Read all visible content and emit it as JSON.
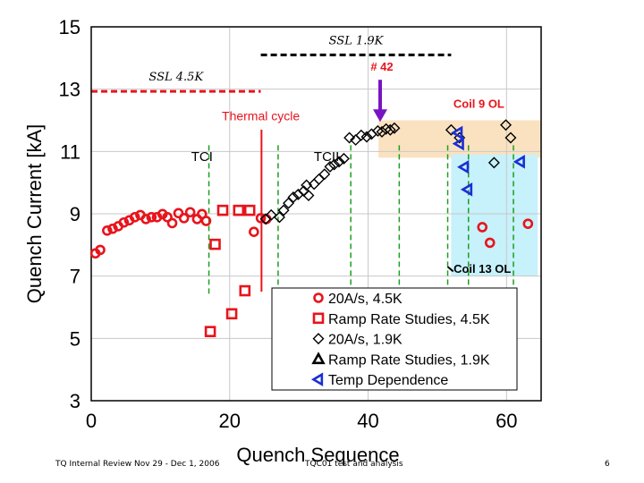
{
  "chart_data": {
    "type": "scatter",
    "xlabel": "Quench Sequence",
    "ylabel": "Quench Current [kA]",
    "xlim": [
      0,
      65
    ],
    "ylim": [
      3,
      15
    ],
    "xticks": [
      0,
      20,
      40,
      60
    ],
    "yticks": [
      3,
      5,
      7,
      9,
      11,
      13,
      15
    ],
    "reference_lines": [
      {
        "label": "SSL 1.9K",
        "y": 14.1,
        "x_range": [
          24.5,
          52
        ],
        "color": "#000000"
      },
      {
        "label": "SSL 4.5K",
        "y": 12.93,
        "x_range": [
          0,
          24.5
        ],
        "color": "#e8141c"
      }
    ],
    "regions": [
      {
        "label": "Coil 9 OL",
        "x_range": [
          41.5,
          65
        ],
        "y_range": [
          10.8,
          12.0
        ],
        "color": "#fae2c0"
      },
      {
        "label": "Coil 13 OL",
        "x_range": [
          52,
          64.5
        ],
        "y_range": [
          7.0,
          10.9
        ],
        "color": "#c7f1fb"
      }
    ],
    "annotations": [
      {
        "text": "# 42",
        "x": 42,
        "y": 13.6,
        "color": "#e8141c"
      },
      {
        "text": "Thermal cycle",
        "x": 24.5,
        "y": 12.0,
        "color": "#e8141c"
      },
      {
        "text": "TCI",
        "x": 16,
        "y": 10.7,
        "color": "#000000"
      },
      {
        "text": "TCII",
        "x": 34,
        "y": 10.7,
        "color": "#000000"
      },
      {
        "text": "Coil 9 OL",
        "x": 56,
        "y": 12.4,
        "color": "#e8141c"
      },
      {
        "text": "Coil 13 OL",
        "x": 56.5,
        "y": 7.1,
        "color": "#000000"
      }
    ],
    "thermal_cycle_x": 24.6,
    "dashed_vlines": [
      17,
      27,
      37.5,
      44.5,
      51.5,
      54.5,
      61
    ],
    "series": [
      {
        "name": "20A/s, 4.5K",
        "marker": "circle",
        "color": "#e8141c",
        "points": [
          [
            0.6,
            7.73
          ],
          [
            1.3,
            7.84
          ],
          [
            2.3,
            8.46
          ],
          [
            3.1,
            8.52
          ],
          [
            3.9,
            8.6
          ],
          [
            4.7,
            8.72
          ],
          [
            5.5,
            8.79
          ],
          [
            6.3,
            8.89
          ],
          [
            7.1,
            8.96
          ],
          [
            7.9,
            8.83
          ],
          [
            8.7,
            8.89
          ],
          [
            9.5,
            8.89
          ],
          [
            10.3,
            8.99
          ],
          [
            11.0,
            8.89
          ],
          [
            11.7,
            8.7
          ],
          [
            12.6,
            9.02
          ],
          [
            13.4,
            8.86
          ],
          [
            14.3,
            9.05
          ],
          [
            15.3,
            8.83
          ],
          [
            16.0,
            8.99
          ],
          [
            16.6,
            8.77
          ],
          [
            23.5,
            8.42
          ],
          [
            24.5,
            8.86
          ],
          [
            25.3,
            8.83
          ],
          [
            56.5,
            8.57
          ],
          [
            57.6,
            8.07
          ],
          [
            63.1,
            8.68
          ]
        ]
      },
      {
        "name": "Ramp Rate Studies, 4.5K",
        "marker": "square",
        "color": "#e8141c",
        "points": [
          [
            17.2,
            5.22
          ],
          [
            17.9,
            8.02
          ],
          [
            19.0,
            9.11
          ],
          [
            20.3,
            5.79
          ],
          [
            21.3,
            9.11
          ],
          [
            22.2,
            6.53
          ],
          [
            22.9,
            9.11
          ]
        ]
      },
      {
        "name": "20A/s, 1.9K",
        "marker": "diamond",
        "color": "#000000",
        "points": [
          [
            25.2,
            8.83
          ],
          [
            26.0,
            8.96
          ],
          [
            27.2,
            8.89
          ],
          [
            27.8,
            9.11
          ],
          [
            28.5,
            9.34
          ],
          [
            29.2,
            9.53
          ],
          [
            29.9,
            9.62
          ],
          [
            30.7,
            9.73
          ],
          [
            31.1,
            9.92
          ],
          [
            31.4,
            9.59
          ],
          [
            32.2,
            9.95
          ],
          [
            32.9,
            10.11
          ],
          [
            33.7,
            10.27
          ],
          [
            34.5,
            10.51
          ],
          [
            35.1,
            10.58
          ],
          [
            35.8,
            10.67
          ],
          [
            36.5,
            10.77
          ],
          [
            37.3,
            11.44
          ],
          [
            38.2,
            11.37
          ],
          [
            39.0,
            11.52
          ],
          [
            39.8,
            11.47
          ],
          [
            40.5,
            11.56
          ],
          [
            41.4,
            11.66
          ],
          [
            42.0,
            11.63
          ],
          [
            42.6,
            11.72
          ],
          [
            43.2,
            11.69
          ],
          [
            43.8,
            11.75
          ],
          [
            52.0,
            11.69
          ],
          [
            53.2,
            11.44
          ],
          [
            58.2,
            10.64
          ],
          [
            59.9,
            11.85
          ],
          [
            60.6,
            11.44
          ]
        ]
      },
      {
        "name": "Ramp Rate Studies, 1.9K",
        "marker": "triangle-up",
        "color": "#000000",
        "points": []
      },
      {
        "name": "Temp Dependence",
        "marker": "triangle-left",
        "color": "#1a2fd4",
        "points": [
          [
            53.0,
            11.6
          ],
          [
            53.2,
            11.25
          ],
          [
            53.9,
            10.5
          ],
          [
            54.4,
            9.78
          ],
          [
            62.0,
            10.67
          ]
        ]
      }
    ]
  },
  "footer": {
    "left": "TQ Internal Review Nov 29 - Dec 1, 2006",
    "center": "TQC01 test and analysis",
    "page": "6"
  }
}
